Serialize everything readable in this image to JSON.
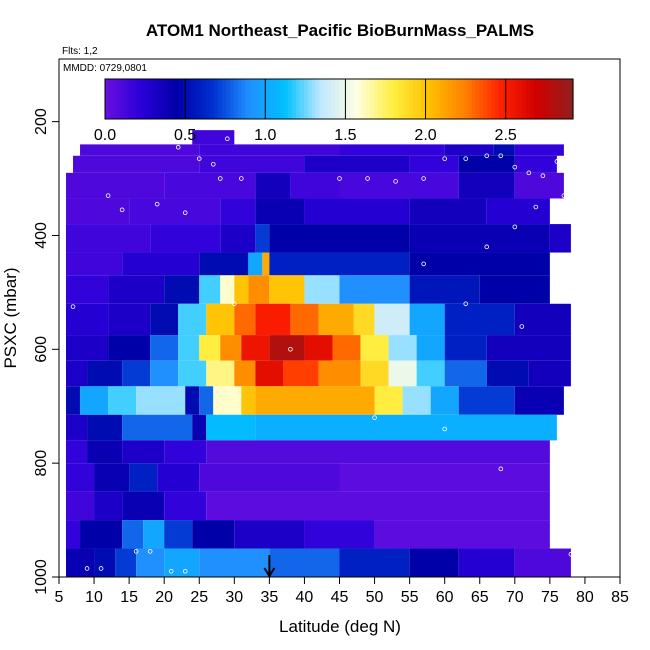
{
  "chart_data": {
    "type": "heatmap",
    "title": "ATOM1 Northeast_Pacific BioBurnMass_PALMS",
    "flights_note": "Flts: 1,2",
    "date_note": "MMDD: 0729,0801",
    "xlabel": "Latitude (deg N)",
    "ylabel": "PSXC (mbar)",
    "xlim": [
      5,
      85
    ],
    "ylim": [
      1000,
      90
    ],
    "x_ticks": [
      "5",
      "10",
      "15",
      "20",
      "25",
      "30",
      "35",
      "40",
      "45",
      "50",
      "55",
      "60",
      "65",
      "70",
      "75",
      "80",
      "85"
    ],
    "y_ticks": [
      "200",
      "400",
      "600",
      "800",
      "1000"
    ],
    "colorbar": {
      "range": [
        0,
        2.92
      ],
      "tick_labels": [
        "0.0",
        "0.5",
        "1.0",
        "1.5",
        "2.0",
        "2.5"
      ],
      "tick_values": [
        0,
        0.5,
        1.0,
        1.5,
        2.0,
        2.5
      ],
      "colors": [
        "#6a0fe0",
        "#2a00d8",
        "#0000a8",
        "#0030d0",
        "#2090ff",
        "#00c0ff",
        "#c0e8ff",
        "#ffffe0",
        "#ffee40",
        "#ffc000",
        "#ff8000",
        "#ff2000",
        "#d00000",
        "#902020"
      ]
    },
    "base_value_color": "#8a2be2",
    "marker_latitude": 35,
    "data_rows": [
      {
        "p_top": 215,
        "p_bot": 240,
        "segments": [
          [
            24,
            30,
            0.15
          ]
        ]
      },
      {
        "p_top": 240,
        "p_bot": 260,
        "segments": [
          [
            8,
            25,
            0.1
          ],
          [
            25,
            45,
            0.15
          ],
          [
            45,
            60,
            0.2
          ],
          [
            60,
            67,
            0.3
          ],
          [
            67,
            70,
            0.5
          ],
          [
            70,
            77,
            0.2
          ]
        ]
      },
      {
        "p_top": 260,
        "p_bot": 290,
        "segments": [
          [
            7,
            25,
            0.1
          ],
          [
            25,
            40,
            0.15
          ],
          [
            40,
            55,
            0.3
          ],
          [
            55,
            62,
            0.2
          ],
          [
            62,
            70,
            0.45
          ],
          [
            70,
            76,
            0.2
          ]
        ]
      },
      {
        "p_top": 290,
        "p_bot": 335,
        "segments": [
          [
            6,
            20,
            0.1
          ],
          [
            20,
            33,
            0.12
          ],
          [
            33,
            38,
            0.35
          ],
          [
            38,
            45,
            0.15
          ],
          [
            45,
            62,
            0.12
          ],
          [
            62,
            70,
            0.35
          ],
          [
            70,
            77,
            0.1
          ]
        ]
      },
      {
        "p_top": 335,
        "p_bot": 380,
        "segments": [
          [
            6,
            15,
            0.1
          ],
          [
            15,
            28,
            0.12
          ],
          [
            28,
            33,
            0.2
          ],
          [
            33,
            40,
            0.4
          ],
          [
            40,
            55,
            0.25
          ],
          [
            55,
            66,
            0.35
          ],
          [
            66,
            75,
            0.25
          ]
        ]
      },
      {
        "p_top": 380,
        "p_bot": 430,
        "segments": [
          [
            6,
            18,
            0.15
          ],
          [
            18,
            28,
            0.2
          ],
          [
            28,
            33,
            0.3
          ],
          [
            33,
            35,
            0.7
          ],
          [
            35,
            55,
            0.45
          ],
          [
            55,
            75,
            0.4
          ],
          [
            75,
            78,
            0.3
          ]
        ]
      },
      {
        "p_top": 430,
        "p_bot": 470,
        "segments": [
          [
            6,
            14,
            0.15
          ],
          [
            14,
            25,
            0.25
          ],
          [
            25,
            32,
            0.5
          ],
          [
            32,
            34,
            1.0
          ],
          [
            34,
            35,
            2.1
          ],
          [
            35,
            55,
            0.6
          ],
          [
            55,
            75,
            0.45
          ]
        ]
      },
      {
        "p_top": 470,
        "p_bot": 520,
        "segments": [
          [
            6,
            12,
            0.2
          ],
          [
            12,
            20,
            0.3
          ],
          [
            20,
            25,
            0.5
          ],
          [
            25,
            28,
            1.2
          ],
          [
            28,
            30,
            1.6
          ],
          [
            30,
            32,
            2.0
          ],
          [
            32,
            35,
            2.2
          ],
          [
            35,
            40,
            2.0
          ],
          [
            40,
            45,
            1.3
          ],
          [
            45,
            55,
            0.9
          ],
          [
            55,
            65,
            0.55
          ],
          [
            65,
            75,
            0.45
          ]
        ]
      },
      {
        "p_top": 520,
        "p_bot": 575,
        "segments": [
          [
            6,
            12,
            0.25
          ],
          [
            12,
            18,
            0.3
          ],
          [
            18,
            22,
            0.5
          ],
          [
            22,
            26,
            1.2
          ],
          [
            26,
            30,
            2.0
          ],
          [
            30,
            33,
            2.3
          ],
          [
            33,
            38,
            2.5
          ],
          [
            38,
            42,
            2.3
          ],
          [
            42,
            47,
            2.1
          ],
          [
            47,
            50,
            1.9
          ],
          [
            50,
            55,
            1.4
          ],
          [
            55,
            60,
            1.0
          ],
          [
            60,
            70,
            0.6
          ],
          [
            70,
            78,
            0.35
          ]
        ]
      },
      {
        "p_top": 575,
        "p_bot": 620,
        "segments": [
          [
            6,
            12,
            0.3
          ],
          [
            12,
            18,
            0.45
          ],
          [
            18,
            22,
            0.8
          ],
          [
            22,
            25,
            1.2
          ],
          [
            25,
            28,
            1.8
          ],
          [
            28,
            31,
            2.2
          ],
          [
            31,
            35,
            2.55
          ],
          [
            35,
            40,
            2.8
          ],
          [
            40,
            44,
            2.6
          ],
          [
            44,
            48,
            2.3
          ],
          [
            48,
            52,
            1.8
          ],
          [
            52,
            56,
            1.3
          ],
          [
            56,
            60,
            1.0
          ],
          [
            60,
            66,
            0.6
          ],
          [
            66,
            78,
            0.35
          ]
        ]
      },
      {
        "p_top": 620,
        "p_bot": 665,
        "segments": [
          [
            6,
            9,
            0.3
          ],
          [
            9,
            14,
            0.5
          ],
          [
            14,
            18,
            0.7
          ],
          [
            18,
            22,
            0.9
          ],
          [
            22,
            26,
            1.2
          ],
          [
            26,
            30,
            1.7
          ],
          [
            30,
            33,
            2.2
          ],
          [
            33,
            37,
            2.6
          ],
          [
            37,
            42,
            2.4
          ],
          [
            42,
            48,
            2.2
          ],
          [
            48,
            52,
            1.9
          ],
          [
            52,
            56,
            1.5
          ],
          [
            56,
            60,
            1.2
          ],
          [
            60,
            66,
            0.8
          ],
          [
            66,
            72,
            0.5
          ],
          [
            72,
            78,
            0.35
          ]
        ]
      },
      {
        "p_top": 665,
        "p_bot": 715,
        "segments": [
          [
            6,
            8,
            0.5
          ],
          [
            8,
            12,
            1.0
          ],
          [
            12,
            16,
            1.2
          ],
          [
            16,
            23,
            1.3
          ],
          [
            23,
            25,
            0.5
          ],
          [
            25,
            27,
            0.8
          ],
          [
            27,
            31,
            1.6
          ],
          [
            31,
            33,
            2.0
          ],
          [
            33,
            50,
            2.1
          ],
          [
            50,
            54,
            1.8
          ],
          [
            54,
            58,
            1.3
          ],
          [
            58,
            62,
            1.0
          ],
          [
            62,
            70,
            0.7
          ],
          [
            70,
            77,
            0.4
          ]
        ]
      },
      {
        "p_top": 715,
        "p_bot": 760,
        "segments": [
          [
            6,
            9,
            0.3
          ],
          [
            9,
            14,
            0.5
          ],
          [
            14,
            24,
            0.8
          ],
          [
            24,
            26,
            0.4
          ],
          [
            26,
            33,
            1.1
          ],
          [
            33,
            76,
            1.05
          ]
        ]
      },
      {
        "p_top": 760,
        "p_bot": 800,
        "segments": [
          [
            6,
            9,
            0.2
          ],
          [
            9,
            14,
            0.4
          ],
          [
            14,
            20,
            0.3
          ],
          [
            20,
            26,
            0.2
          ],
          [
            26,
            75,
            0.08
          ]
        ]
      },
      {
        "p_top": 800,
        "p_bot": 850,
        "segments": [
          [
            6,
            10,
            0.2
          ],
          [
            10,
            15,
            0.4
          ],
          [
            15,
            19,
            0.6
          ],
          [
            19,
            25,
            0.25
          ],
          [
            25,
            45,
            0.1
          ],
          [
            45,
            75,
            0.05
          ]
        ]
      },
      {
        "p_top": 850,
        "p_bot": 900,
        "segments": [
          [
            6,
            10,
            0.15
          ],
          [
            10,
            14,
            0.3
          ],
          [
            14,
            20,
            0.4
          ],
          [
            20,
            26,
            0.2
          ],
          [
            26,
            75,
            0.05
          ]
        ]
      },
      {
        "p_top": 900,
        "p_bot": 950,
        "segments": [
          [
            6,
            8,
            0.2
          ],
          [
            8,
            14,
            0.45
          ],
          [
            14,
            17,
            0.8
          ],
          [
            17,
            20,
            1.0
          ],
          [
            20,
            24,
            0.7
          ],
          [
            24,
            30,
            0.45
          ],
          [
            30,
            40,
            0.3
          ],
          [
            40,
            50,
            0.2
          ],
          [
            50,
            75,
            0.05
          ]
        ]
      },
      {
        "p_top": 950,
        "p_bot": 1000,
        "segments": [
          [
            6,
            10,
            0.4
          ],
          [
            10,
            13,
            0.5
          ],
          [
            13,
            16,
            0.7
          ],
          [
            16,
            20,
            0.9
          ],
          [
            20,
            25,
            1.0
          ],
          [
            25,
            35,
            0.9
          ],
          [
            35,
            45,
            0.8
          ],
          [
            45,
            55,
            0.6
          ],
          [
            55,
            62,
            0.45
          ],
          [
            62,
            70,
            0.25
          ],
          [
            70,
            78,
            0.1
          ]
        ]
      }
    ]
  }
}
